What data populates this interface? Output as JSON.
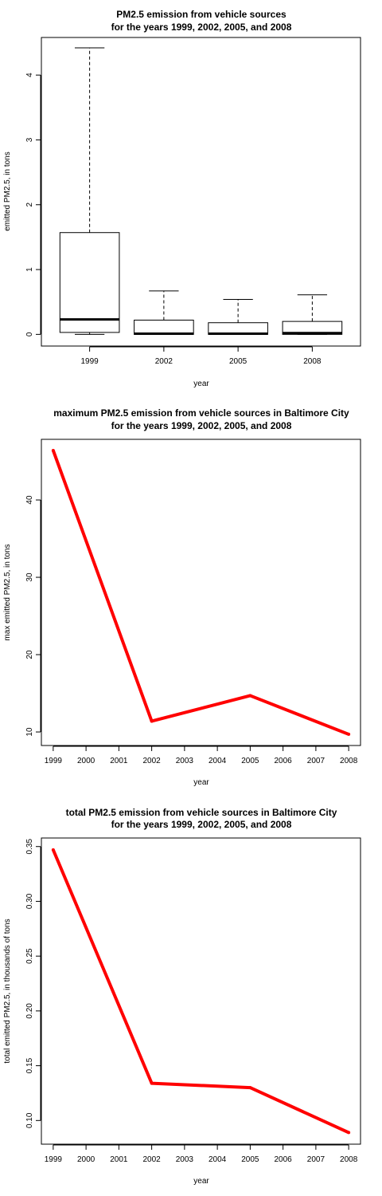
{
  "chart_data": [
    {
      "type": "box",
      "title": [
        "PM2.5 emission from vehicle sources",
        "for the years 1999, 2002, 2005, and 2008"
      ],
      "xlabel": "year",
      "ylabel": "emitted PM2.5, in tons",
      "categories": [
        "1999",
        "2002",
        "2005",
        "2008"
      ],
      "ylim": [
        -0.18,
        4.58
      ],
      "yticks": [
        0,
        1,
        2,
        3,
        4
      ],
      "boxes": [
        {
          "min": 0.0,
          "q1": 0.03,
          "median": 0.23,
          "q3": 1.57,
          "max": 4.42
        },
        {
          "min": 0.0,
          "q1": 0.0,
          "median": 0.01,
          "q3": 0.22,
          "max": 0.67
        },
        {
          "min": 0.0,
          "q1": 0.0,
          "median": 0.01,
          "q3": 0.18,
          "max": 0.54
        },
        {
          "min": 0.0,
          "q1": 0.0,
          "median": 0.02,
          "q3": 0.2,
          "max": 0.61
        }
      ],
      "grid": false
    },
    {
      "type": "line",
      "title": [
        "maximum PM2.5 emission from vehicle sources in Baltimore City",
        "for the years 1999, 2002, 2005, and 2008"
      ],
      "xlabel": "year",
      "ylabel": "max emitted PM2.5, in tons",
      "x": [
        1999,
        2002,
        2005,
        2008
      ],
      "y": [
        46.4,
        11.4,
        14.7,
        9.7
      ],
      "xlim": [
        1998.64,
        2008.36
      ],
      "ylim": [
        8.25,
        47.84
      ],
      "xticks": [
        "1999",
        "2000",
        "2001",
        "2002",
        "2003",
        "2004",
        "2005",
        "2006",
        "2007",
        "2008"
      ],
      "yticks": [
        10,
        20,
        30,
        40
      ],
      "color": "#ff0000",
      "grid": false
    },
    {
      "type": "line",
      "title": [
        "total PM2.5 emission from vehicle sources in Baltimore City",
        "for the years 1999, 2002, 2005, and 2008"
      ],
      "xlabel": "year",
      "ylabel": "total emitted PM2.5, in thousands of tons",
      "x": [
        1999,
        2002,
        2005,
        2008
      ],
      "y": [
        0.347,
        0.134,
        0.13,
        0.089
      ],
      "xlim": [
        1998.64,
        2008.36
      ],
      "ylim": [
        0.0784,
        0.3578
      ],
      "xticks": [
        "1999",
        "2000",
        "2001",
        "2002",
        "2003",
        "2004",
        "2005",
        "2006",
        "2007",
        "2008"
      ],
      "yticks": [
        "0.10",
        "0.15",
        "0.20",
        "0.25",
        "0.30",
        "0.35"
      ],
      "color": "#ff0000",
      "grid": false
    }
  ]
}
